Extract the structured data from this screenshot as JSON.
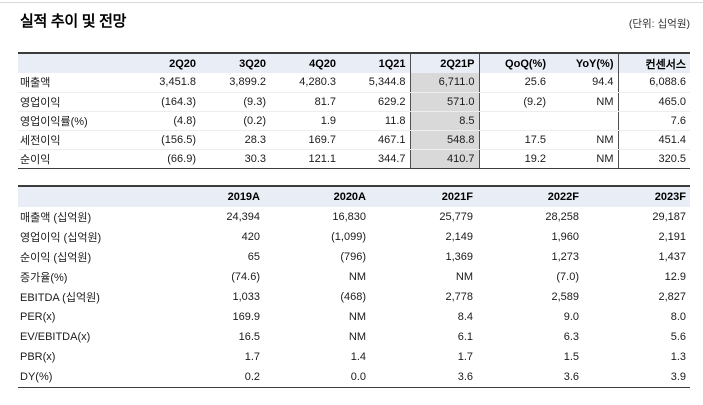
{
  "page": {
    "title": "실적 추이 및 전망",
    "unit_label": "(단위: 십억원)"
  },
  "colors": {
    "header_bg": "#e8edf6",
    "highlight_column_bg": "#d9d9d9",
    "strong_border": "#3c3c3c"
  },
  "quarterly_table": {
    "columns": [
      "",
      "2Q20",
      "3Q20",
      "4Q20",
      "1Q21",
      "2Q21P",
      "QoQ(%)",
      "YoY(%)",
      "컨센서스"
    ],
    "highlight_column": "2Q21P",
    "rows": [
      {
        "label": "매출액",
        "values": [
          "3,451.8",
          "3,899.2",
          "4,280.3",
          "5,344.8",
          "6,711.0",
          "25.6",
          "94.4",
          "6,088.6"
        ]
      },
      {
        "label": "영업이익",
        "values": [
          "(164.3)",
          "(9.3)",
          "81.7",
          "629.2",
          "571.0",
          "(9.2)",
          "NM",
          "465.0"
        ]
      },
      {
        "label": "영업이익률(%)",
        "values": [
          "(4.8)",
          "(0.2)",
          "1.9",
          "11.8",
          "8.5",
          "",
          "",
          "7.6"
        ]
      },
      {
        "label": "세전이익",
        "values": [
          "(156.5)",
          "28.3",
          "169.7",
          "467.1",
          "548.8",
          "17.5",
          "NM",
          "451.4"
        ]
      },
      {
        "label": "순이익",
        "values": [
          "(66.9)",
          "30.3",
          "121.1",
          "344.7",
          "410.7",
          "19.2",
          "NM",
          "320.5"
        ]
      }
    ]
  },
  "annual_table": {
    "columns": [
      "",
      "2019A",
      "2020A",
      "2021F",
      "2022F",
      "2023F"
    ],
    "rows": [
      {
        "label": "매출액 (십억원)",
        "values": [
          "24,394",
          "16,830",
          "25,779",
          "28,258",
          "29,187"
        ]
      },
      {
        "label": "영업이익 (십억원)",
        "values": [
          "420",
          "(1,099)",
          "2,149",
          "1,960",
          "2,191"
        ]
      },
      {
        "label": "순이익 (십억원)",
        "values": [
          "65",
          "(796)",
          "1,369",
          "1,273",
          "1,437"
        ]
      },
      {
        "label": "증가율(%)",
        "values": [
          "(74.6)",
          "NM",
          "NM",
          "(7.0)",
          "12.9"
        ]
      },
      {
        "label": "EBITDA (십억원)",
        "values": [
          "1,033",
          "(468)",
          "2,778",
          "2,589",
          "2,827"
        ]
      },
      {
        "label": "PER(x)",
        "values": [
          "169.9",
          "NM",
          "8.4",
          "9.0",
          "8.0"
        ]
      },
      {
        "label": "EV/EBITDA(x)",
        "values": [
          "16.5",
          "NM",
          "6.1",
          "6.3",
          "5.6"
        ]
      },
      {
        "label": "PBR(x)",
        "values": [
          "1.7",
          "1.4",
          "1.7",
          "1.5",
          "1.3"
        ]
      },
      {
        "label": "DY(%)",
        "values": [
          "0.2",
          "0.0",
          "3.6",
          "3.6",
          "3.9"
        ]
      }
    ]
  }
}
